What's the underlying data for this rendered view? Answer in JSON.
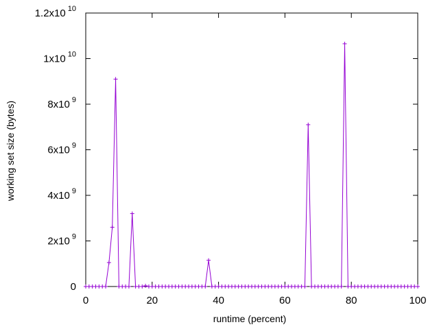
{
  "chart_data": {
    "type": "line",
    "title": "",
    "xlabel": "runtime (percent)",
    "ylabel": "working set size (bytes)",
    "xlim": [
      0,
      100
    ],
    "ylim": [
      0,
      12000000000
    ],
    "grid": false,
    "legend": "none",
    "line_color": "#9400d3",
    "x_ticks": [
      {
        "value": 0,
        "label": "0"
      },
      {
        "value": 20,
        "label": "20"
      },
      {
        "value": 40,
        "label": "40"
      },
      {
        "value": 60,
        "label": "60"
      },
      {
        "value": 80,
        "label": "80"
      },
      {
        "value": 100,
        "label": "100"
      }
    ],
    "y_ticks": [
      {
        "value": 0,
        "mantissa": "0",
        "exp": ""
      },
      {
        "value": 2000000000,
        "mantissa": "2x10",
        "exp": "9"
      },
      {
        "value": 4000000000,
        "mantissa": "4x10",
        "exp": "9"
      },
      {
        "value": 6000000000,
        "mantissa": "6x10",
        "exp": "9"
      },
      {
        "value": 8000000000,
        "mantissa": "8x10",
        "exp": "9"
      },
      {
        "value": 10000000000,
        "mantissa": "1x10",
        "exp": "10"
      },
      {
        "value": 12000000000,
        "mantissa": "1.2x10",
        "exp": "10"
      }
    ],
    "series": [
      {
        "x": [
          0,
          1,
          2,
          3,
          4,
          5,
          6,
          7,
          8,
          9,
          10,
          11,
          12,
          13,
          14,
          15,
          16,
          17,
          18,
          19,
          20,
          21,
          22,
          23,
          24,
          25,
          26,
          27,
          28,
          29,
          30,
          31,
          32,
          33,
          34,
          35,
          36,
          37,
          38,
          39,
          40,
          41,
          42,
          43,
          44,
          45,
          46,
          47,
          48,
          49,
          50,
          51,
          52,
          53,
          54,
          55,
          56,
          57,
          58,
          59,
          60,
          61,
          62,
          63,
          64,
          65,
          66,
          67,
          68,
          69,
          70,
          71,
          72,
          73,
          74,
          75,
          76,
          77,
          78,
          79,
          80,
          81,
          82,
          83,
          84,
          85,
          86,
          87,
          88,
          89,
          90,
          91,
          92,
          93,
          94,
          95,
          96,
          97,
          98,
          99,
          100
        ],
        "y": [
          0,
          0,
          0,
          0,
          0,
          0,
          0,
          1050000000,
          2600000000,
          9100000000,
          0,
          0,
          0,
          0,
          3200000000,
          0,
          0,
          0,
          30000000,
          0,
          0,
          0,
          0,
          0,
          0,
          0,
          0,
          0,
          0,
          0,
          0,
          0,
          0,
          0,
          0,
          0,
          0,
          1150000000,
          0,
          0,
          0,
          0,
          0,
          0,
          0,
          0,
          0,
          0,
          0,
          0,
          0,
          0,
          0,
          0,
          0,
          0,
          0,
          0,
          0,
          0,
          0,
          0,
          0,
          0,
          0,
          0,
          0,
          7100000000,
          0,
          0,
          0,
          0,
          0,
          0,
          0,
          0,
          0,
          0,
          10650000000,
          0,
          0,
          0,
          0,
          0,
          0,
          0,
          0,
          0,
          0,
          0,
          0,
          0,
          0,
          0,
          0,
          0,
          0,
          0,
          0,
          0,
          0
        ]
      }
    ]
  }
}
